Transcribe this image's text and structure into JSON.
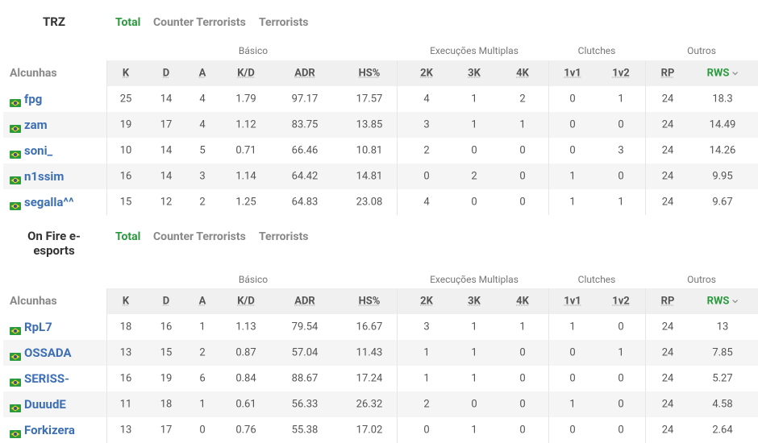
{
  "teams": [
    {
      "name": "TRZ",
      "tabs": [
        "Total",
        "Counter Terrorists",
        "Terrorists"
      ],
      "groups": [
        "Básico",
        "Execuções Multiplas",
        "Clutches",
        "Outros"
      ],
      "columns": [
        "Alcunhas",
        "K",
        "D",
        "A",
        "K/D",
        "ADR",
        "HS%",
        "2K",
        "3K",
        "4K",
        "1v1",
        "1v2",
        "RP",
        "RWS"
      ],
      "rows": [
        [
          "fpg",
          25,
          14,
          4,
          1.79,
          97.17,
          17.57,
          4,
          1,
          2,
          0,
          1,
          24,
          18.3
        ],
        [
          "zam",
          19,
          17,
          4,
          1.12,
          83.75,
          13.85,
          3,
          1,
          1,
          0,
          0,
          24,
          14.49
        ],
        [
          "soni_",
          10,
          14,
          5,
          0.71,
          66.46,
          10.81,
          2,
          0,
          0,
          0,
          3,
          24,
          14.26
        ],
        [
          "n1ssim",
          16,
          14,
          3,
          1.14,
          64.42,
          14.81,
          0,
          2,
          0,
          1,
          0,
          24,
          9.95
        ],
        [
          "segalla^^",
          15,
          12,
          2,
          1.25,
          64.83,
          23.08,
          4,
          0,
          0,
          1,
          1,
          24,
          9.67
        ]
      ]
    },
    {
      "name": "On Fire e-esports",
      "tabs": [
        "Total",
        "Counter Terrorists",
        "Terrorists"
      ],
      "groups": [
        "Básico",
        "Execuções Multiplas",
        "Clutches",
        "Outros"
      ],
      "columns": [
        "Alcunhas",
        "K",
        "D",
        "A",
        "K/D",
        "ADR",
        "HS%",
        "2K",
        "3K",
        "4K",
        "1v1",
        "1v2",
        "RP",
        "RWS"
      ],
      "rows": [
        [
          "RpL7",
          18,
          16,
          1,
          1.13,
          79.54,
          16.67,
          3,
          1,
          1,
          1,
          0,
          24,
          13
        ],
        [
          "OSSADA",
          13,
          15,
          2,
          0.87,
          57.04,
          11.43,
          1,
          1,
          0,
          0,
          1,
          24,
          7.85
        ],
        [
          "SERISS-",
          16,
          19,
          6,
          0.84,
          88.67,
          17.24,
          1,
          1,
          0,
          0,
          0,
          24,
          5.27
        ],
        [
          "DuuudE",
          11,
          18,
          1,
          0.61,
          56.33,
          26.32,
          2,
          0,
          0,
          1,
          0,
          24,
          4.58
        ],
        [
          "Forkizera",
          13,
          17,
          0,
          0.76,
          55.38,
          17.02,
          0,
          1,
          0,
          0,
          0,
          24,
          2.64
        ]
      ]
    }
  ]
}
